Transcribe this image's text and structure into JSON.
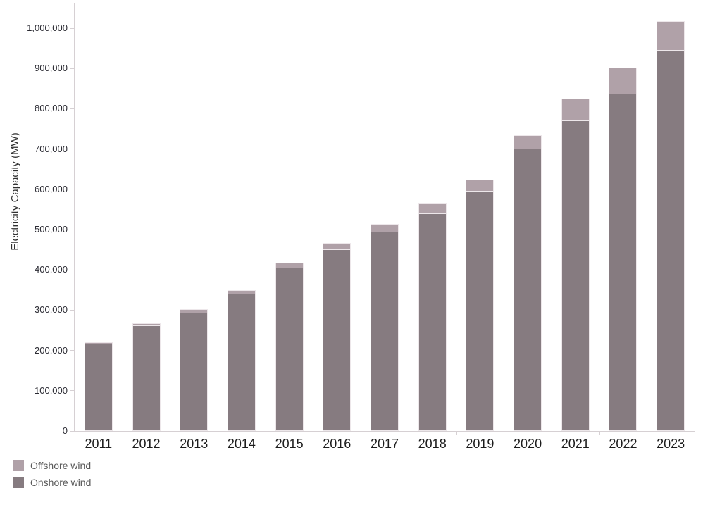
{
  "chart_data": {
    "type": "bar",
    "stacked": true,
    "title": "",
    "xlabel": "",
    "ylabel": "Electricity Capacity (MW)",
    "categories": [
      "2011",
      "2012",
      "2013",
      "2014",
      "2015",
      "2016",
      "2017",
      "2018",
      "2019",
      "2020",
      "2021",
      "2022",
      "2023"
    ],
    "series": [
      {
        "name": "Offshore wind",
        "color": "#b0a1a8",
        "values": [
          4000,
          5500,
          7500,
          8500,
          12000,
          14500,
          19000,
          25000,
          28000,
          33000,
          54500,
          65500,
          71500
        ]
      },
      {
        "name": "Onshore wind",
        "color": "#867b80",
        "values": [
          216000,
          262500,
          294500,
          341500,
          405000,
          451500,
          495500,
          541000,
          596000,
          701500,
          771500,
          837000,
          946500
        ]
      }
    ],
    "totals": [
      220000,
      268000,
      302000,
      350000,
      417000,
      466000,
      514500,
      566000,
      624000,
      734500,
      826000,
      902500,
      1018000
    ],
    "ylim": [
      0,
      1000000
    ],
    "y_tick_step": 100000,
    "y_ticks": [
      "0",
      "100,000",
      "200,000",
      "300,000",
      "400,000",
      "500,000",
      "600,000",
      "700,000",
      "800,000",
      "900,000",
      "1,000,000"
    ],
    "grid": false,
    "legend_position": "bottom-left",
    "legend": [
      {
        "label": "Offshore wind",
        "color": "#b0a1a8"
      },
      {
        "label": "Onshore wind",
        "color": "#867b80"
      }
    ]
  },
  "colors": {
    "background": "#ffffff",
    "axis_line": "#d6d0d3",
    "y_tick_text": "#2b2b33",
    "x_tick_text": "#1c1c1c",
    "legend_text": "#5a5a5a",
    "bar_border": "#ede7ea"
  }
}
